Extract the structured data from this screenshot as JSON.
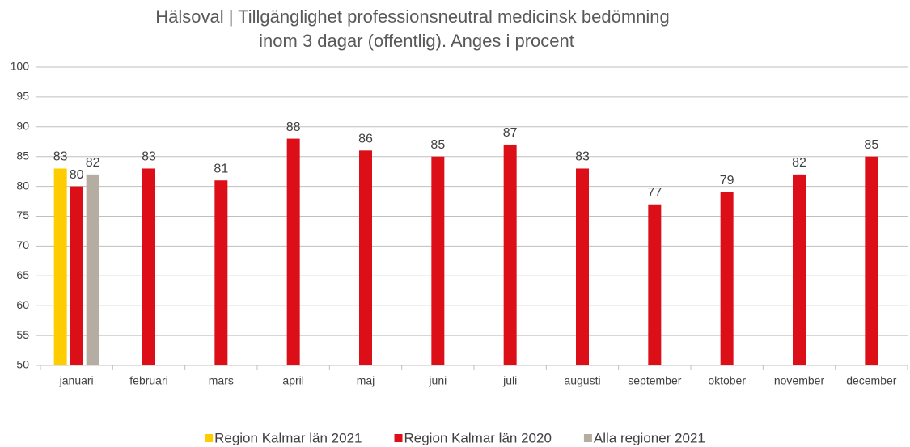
{
  "chart_data": {
    "type": "bar",
    "title": [
      "Hälsoval | Tillgänglighet professionsneutral medicinsk bedömning",
      "inom 3 dagar (offentlig). Anges i procent"
    ],
    "categories": [
      "januari",
      "februari",
      "mars",
      "april",
      "maj",
      "juni",
      "juli",
      "augusti",
      "september",
      "oktober",
      "november",
      "december"
    ],
    "series": [
      {
        "name": "Region Kalmar län 2021",
        "color": "#ffcc00",
        "values": [
          83,
          null,
          null,
          null,
          null,
          null,
          null,
          null,
          null,
          null,
          null,
          null
        ]
      },
      {
        "name": "Region Kalmar län 2020",
        "color": "#dc0f19",
        "values": [
          80,
          83,
          81,
          88,
          86,
          85,
          87,
          83,
          77,
          79,
          82,
          85
        ]
      },
      {
        "name": "Alla regioner 2021",
        "color": "#b5aca2",
        "values": [
          82,
          null,
          null,
          null,
          null,
          null,
          null,
          null,
          null,
          null,
          null,
          null
        ]
      }
    ],
    "ylim": [
      50,
      100
    ],
    "yticks": [
      50,
      55,
      60,
      65,
      70,
      75,
      80,
      85,
      90,
      95,
      100
    ],
    "grid": true,
    "legend": "bottom"
  }
}
